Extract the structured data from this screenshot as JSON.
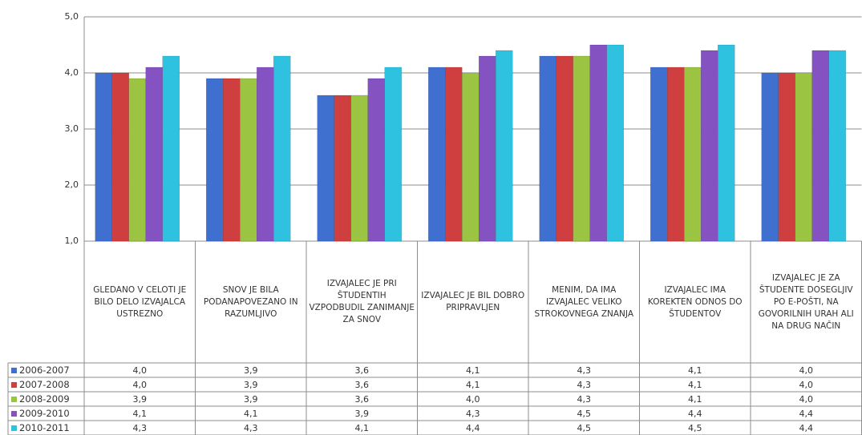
{
  "chart_data": {
    "type": "bar",
    "categories": [
      "GLEDANO  V CELOTI JE BILO DELO IZVAJALCA USTREZNO",
      "SNOV JE BILA PODANAPOVEZANO IN RAZUMLJIVO",
      "IZVAJALEC JE PRI ŠTUDENTIH VZPODBUDIL ZANIMANJE ZA SNOV",
      "IZVAJALEC JE BIL DOBRO PRIPRAVLJEN",
      "MENIM,  DA IMA IZVAJALEC VELIKO STROKOVNEGA ZNANJA",
      "IZVAJALEC IMA KOREKTEN ODNOS DO ŠTUDENTOV",
      "IZVAJALEC JE ZA ŠTUDENTE DOSEGLJIV PO E-POŠTI, NA GOVORILNIH URAH ALI NA DRUG NAČIN"
    ],
    "series": [
      {
        "name": "2006-2007",
        "color": "#3f6fcf",
        "values": [
          4.0,
          3.9,
          3.6,
          4.1,
          4.3,
          4.1,
          4.0
        ],
        "value_labels": [
          "4,0",
          "3,9",
          "3,6",
          "4,1",
          "4,3",
          "4,1",
          "4,0"
        ]
      },
      {
        "name": "2007-2008",
        "color": "#cf3f3f",
        "values": [
          4.0,
          3.9,
          3.6,
          4.1,
          4.3,
          4.1,
          4.0
        ],
        "value_labels": [
          "4,0",
          "3,9",
          "3,6",
          "4,1",
          "4,3",
          "4,1",
          "4,0"
        ]
      },
      {
        "name": "2008-2009",
        "color": "#9bc443",
        "values": [
          3.9,
          3.9,
          3.6,
          4.0,
          4.3,
          4.1,
          4.0
        ],
        "value_labels": [
          "3,9",
          "3,9",
          "3,6",
          "4,0",
          "4,3",
          "4,1",
          "4,0"
        ]
      },
      {
        "name": "2009-2010",
        "color": "#8552c2",
        "values": [
          4.1,
          4.1,
          3.9,
          4.3,
          4.5,
          4.4,
          4.4
        ],
        "value_labels": [
          "4,1",
          "4,1",
          "3,9",
          "4,3",
          "4,5",
          "4,4",
          "4,4"
        ]
      },
      {
        "name": "2010-2011",
        "color": "#2ec2e0",
        "values": [
          4.3,
          4.3,
          4.1,
          4.4,
          4.5,
          4.5,
          4.4
        ],
        "value_labels": [
          "4,3",
          "4,3",
          "4,1",
          "4,4",
          "4,5",
          "4,5",
          "4,4"
        ]
      }
    ],
    "ylim": [
      1,
      5
    ],
    "yticks": [
      {
        "value": 1,
        "label": "1,0"
      },
      {
        "value": 2,
        "label": "2,0"
      },
      {
        "value": 3,
        "label": "3,0"
      },
      {
        "value": 4,
        "label": "4,0"
      },
      {
        "value": 5,
        "label": "5,0"
      }
    ],
    "grid": true
  }
}
